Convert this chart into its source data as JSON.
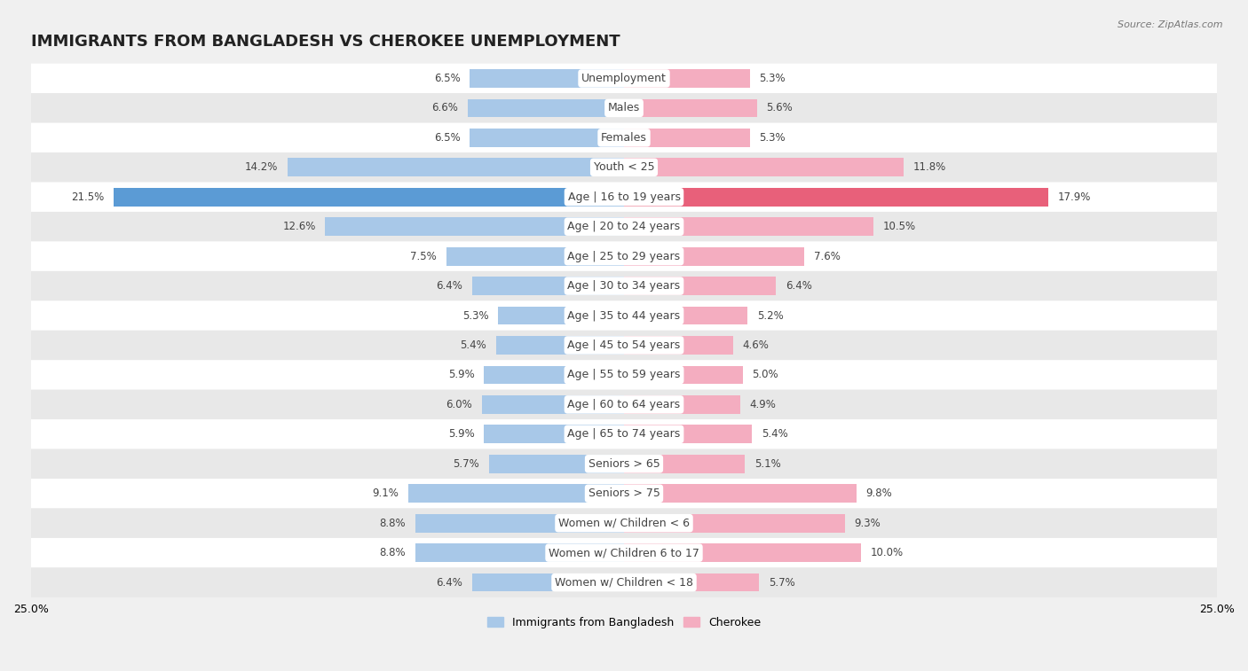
{
  "title": "IMMIGRANTS FROM BANGLADESH VS CHEROKEE UNEMPLOYMENT",
  "source": "Source: ZipAtlas.com",
  "categories": [
    "Unemployment",
    "Males",
    "Females",
    "Youth < 25",
    "Age | 16 to 19 years",
    "Age | 20 to 24 years",
    "Age | 25 to 29 years",
    "Age | 30 to 34 years",
    "Age | 35 to 44 years",
    "Age | 45 to 54 years",
    "Age | 55 to 59 years",
    "Age | 60 to 64 years",
    "Age | 65 to 74 years",
    "Seniors > 65",
    "Seniors > 75",
    "Women w/ Children < 6",
    "Women w/ Children 6 to 17",
    "Women w/ Children < 18"
  ],
  "bangladesh_values": [
    6.5,
    6.6,
    6.5,
    14.2,
    21.5,
    12.6,
    7.5,
    6.4,
    5.3,
    5.4,
    5.9,
    6.0,
    5.9,
    5.7,
    9.1,
    8.8,
    8.8,
    6.4
  ],
  "cherokee_values": [
    5.3,
    5.6,
    5.3,
    11.8,
    17.9,
    10.5,
    7.6,
    6.4,
    5.2,
    4.6,
    5.0,
    4.9,
    5.4,
    5.1,
    9.8,
    9.3,
    10.0,
    5.7
  ],
  "bangladesh_color": "#a8c8e8",
  "cherokee_color": "#f4adc0",
  "highlight_bangladesh_color": "#5b9bd5",
  "highlight_cherokee_color": "#e8607a",
  "xlim": 25.0,
  "bar_height": 0.62,
  "background_color": "#f0f0f0",
  "row_color_light": "#ffffff",
  "row_color_dark": "#e8e8e8",
  "title_fontsize": 13,
  "label_fontsize": 9,
  "value_fontsize": 8.5
}
